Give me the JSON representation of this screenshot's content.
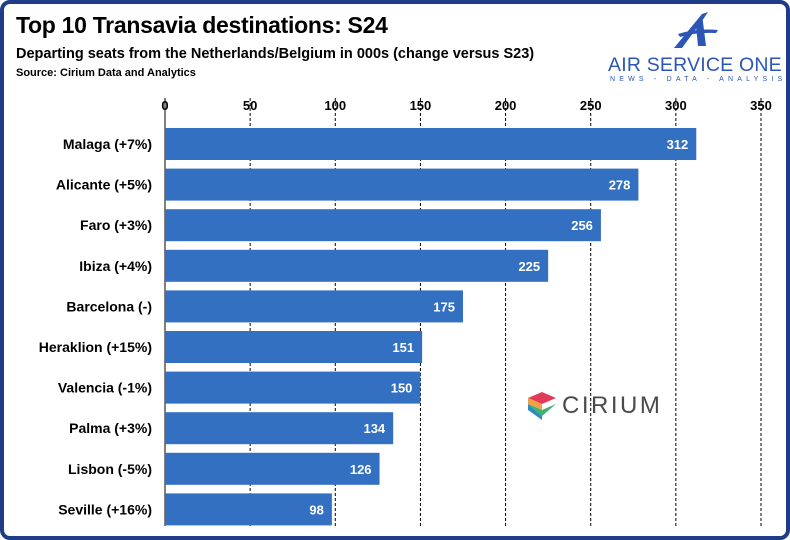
{
  "header": {
    "title": "Top 10 Transavia destinations: S24",
    "subtitle": "Departing seats from the Netherlands/Belgium in 000s (change versus S23)",
    "source": "Source: Cirium Data and Analytics"
  },
  "logos": {
    "air_service_one": {
      "name": "AIR SERVICE ONE",
      "tagline": "NEWS - DATA - ANALYSIS"
    },
    "cirium": {
      "name": "CIRIUM"
    }
  },
  "colors": {
    "bar": "#3470c1",
    "frame": "#1f3c88",
    "brand_blue": "#2c56b5"
  },
  "chart_data": {
    "type": "bar",
    "orientation": "horizontal",
    "categories": [
      "Malaga (+7%)",
      "Alicante (+5%)",
      "Faro (+3%)",
      "Ibiza (+4%)",
      "Barcelona (-)",
      "Heraklion (+15%)",
      "Valencia (-1%)",
      "Palma (+3%)",
      "Lisbon (-5%)",
      "Seville (+16%)"
    ],
    "values": [
      312,
      278,
      256,
      225,
      175,
      151,
      150,
      134,
      126,
      98
    ],
    "xlim": [
      0,
      350
    ],
    "xticks": [
      0,
      50,
      100,
      150,
      200,
      250,
      300,
      350
    ],
    "axis_position": "top",
    "grid": true,
    "data_labels": true
  }
}
